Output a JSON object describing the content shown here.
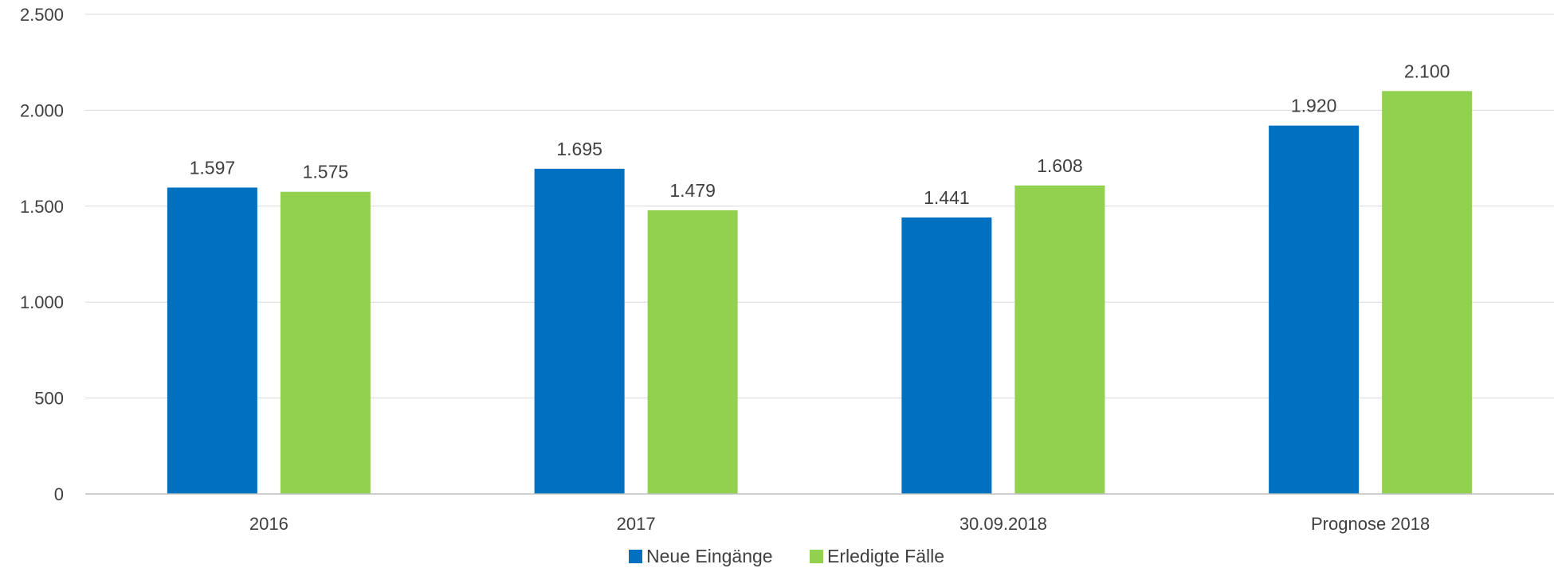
{
  "chart_data": {
    "type": "bar",
    "categories": [
      "2016",
      "2017",
      "30.09.2018",
      "Prognose 2018"
    ],
    "series": [
      {
        "name": "Neue Eingänge",
        "color": "#0070c0",
        "values": [
          1597,
          1695,
          1441,
          1920
        ]
      },
      {
        "name": "Erledigte Fälle",
        "color": "#92d050",
        "values": [
          1575,
          1479,
          1608,
          2100
        ]
      }
    ],
    "value_labels": [
      [
        "1.597",
        "1.695",
        "1.441",
        "1.920"
      ],
      [
        "1.575",
        "1.479",
        "1.608",
        "2.100"
      ]
    ],
    "y_ticks": [
      0,
      500,
      1000,
      1500,
      2000,
      2500
    ],
    "y_tick_labels": [
      "0",
      "500",
      "1.000",
      "1.500",
      "2.000",
      "2.500"
    ],
    "ylim": [
      0,
      2500
    ],
    "grid": true,
    "legend_position": "bottom-center",
    "title": "",
    "xlabel": "",
    "ylabel": ""
  }
}
